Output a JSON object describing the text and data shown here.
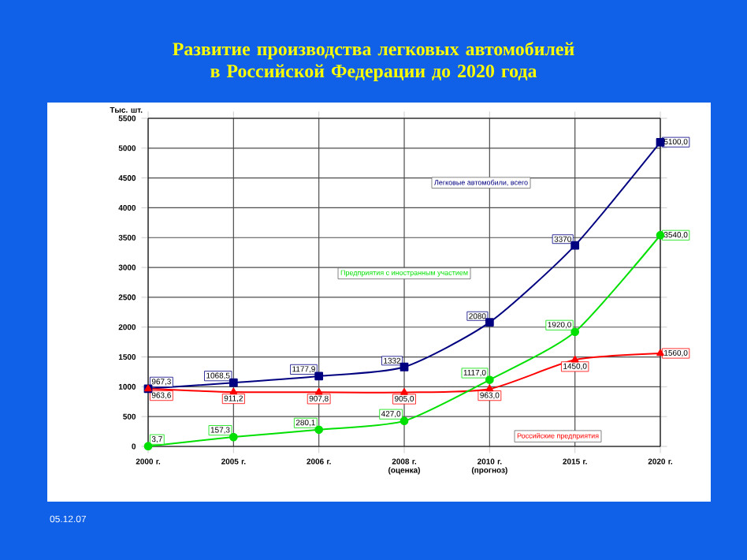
{
  "chart_data": {
    "type": "line",
    "title": "Развитие производства легковых автомобилей в Российской Федерации до 2020 года",
    "ylabel": "Тыс. шт.",
    "categories": [
      "2000 г.",
      "2005 г.",
      "2006 г.",
      "2008 г. (оценка)",
      "2010 г. (прогноз)",
      "2015 г.",
      "2020 г."
    ],
    "series": [
      {
        "name": "Легковые автомобили, всего",
        "color": "#000080",
        "marker": "square",
        "values": [
          967.3,
          1068.5,
          1177.9,
          1332,
          2080,
          3370,
          5100.0
        ],
        "value_labels": [
          "967,3",
          "1068,5",
          "1177,9",
          "1332",
          "2080",
          "3370",
          "5100,0"
        ]
      },
      {
        "name": "Российские предприятия",
        "color": "#ff0000",
        "marker": "triangle",
        "values": [
          963.6,
          911.2,
          907.8,
          905.0,
          963.0,
          1450.0,
          1560.0
        ],
        "value_labels": [
          "963,6",
          "911,2",
          "907,8",
          "905,0",
          "963,0",
          "1450,0",
          "1560,0"
        ]
      },
      {
        "name": "Предприятия с иностранным участием",
        "color": "#00e000",
        "marker": "circle",
        "values": [
          3.7,
          157.3,
          280.1,
          427.0,
          1117.0,
          1920.0,
          3540.0
        ],
        "value_labels": [
          "3,7",
          "157,3",
          "280,1",
          "427,0",
          "1117,0",
          "1920,0",
          "3540,0"
        ]
      }
    ],
    "ylim": [
      0,
      5500
    ],
    "yticks": [
      0,
      500,
      1000,
      1500,
      2000,
      2500,
      3000,
      3500,
      4000,
      4500,
      5000,
      5500
    ],
    "grid": true,
    "annotations": [
      "05.12.07"
    ]
  }
}
